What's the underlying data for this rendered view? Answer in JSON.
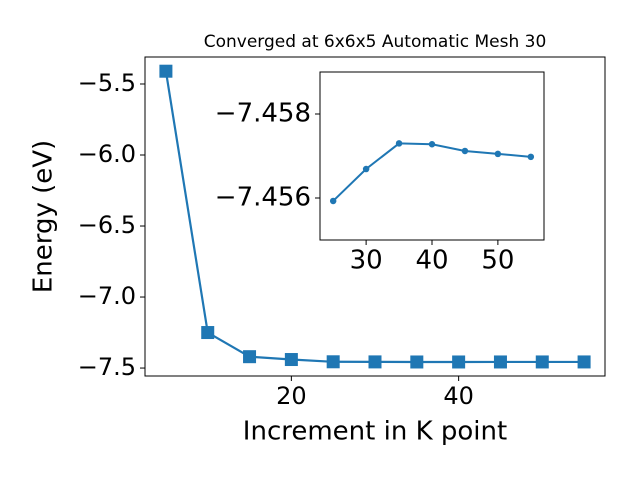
{
  "chart_data": [
    {
      "type": "line",
      "title": "Converged at 6x6x5 Automatic Mesh 30",
      "xlabel": "Increment in K point",
      "ylabel": "Energy (eV)",
      "x": [
        5,
        10,
        15,
        20,
        25,
        30,
        35,
        40,
        45,
        50,
        55
      ],
      "series": [
        {
          "name": "Energy",
          "color": "#1f77b4",
          "marker": "square",
          "values": [
            -5.41,
            -7.25,
            -7.42,
            -7.44,
            -7.45593,
            -7.45669,
            -7.4573,
            -7.45728,
            -7.45712,
            -7.45705,
            -7.45698
          ]
        }
      ],
      "xlim": [
        2.5,
        57.5
      ],
      "ylim": [
        -7.556,
        -5.31
      ],
      "xticks": [
        20,
        40
      ],
      "yticks": [
        {
          "value": -5.5,
          "label": "−5.5"
        },
        {
          "value": -6.0,
          "label": "−6.0"
        },
        {
          "value": -6.5,
          "label": "−6.5"
        },
        {
          "value": -7.0,
          "label": "−7.0"
        },
        {
          "value": -7.5,
          "label": "−7.5"
        }
      ]
    },
    {
      "type": "line",
      "x": [
        25,
        30,
        35,
        40,
        45,
        50,
        55
      ],
      "series": [
        {
          "name": "Energy",
          "color": "#1f77b4",
          "marker": "circle",
          "values": [
            -7.45593,
            -7.45669,
            -7.4573,
            -7.45728,
            -7.45712,
            -7.45705,
            -7.45698
          ]
        }
      ],
      "xlim": [
        23,
        57
      ],
      "ylim": [
        -7.455,
        -7.459
      ],
      "xticks": [
        30,
        40,
        50
      ],
      "yticks": [
        {
          "value": -7.458,
          "label": "−7.458"
        },
        {
          "value": -7.456,
          "label": "−7.456"
        }
      ]
    }
  ]
}
